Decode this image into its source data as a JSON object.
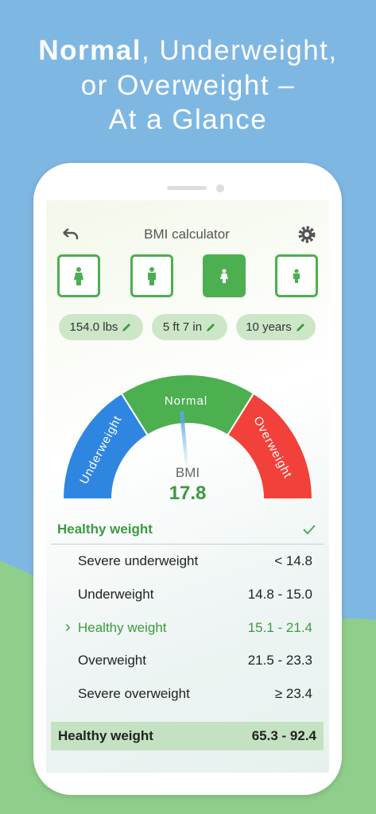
{
  "headline": {
    "bold": "Normal",
    "line1_rest": ", Underweight,",
    "line2": "or Overweight –",
    "line3": "At a Glance"
  },
  "app": {
    "title": "BMI calculator",
    "chips": [
      "154.0 lbs",
      "5 ft 7 in",
      "10 years"
    ],
    "gauge": {
      "segments": [
        "Underweight",
        "Normal",
        "Overweight"
      ],
      "label": "BMI",
      "value": "17.8"
    },
    "status": "Healthy weight",
    "table": {
      "rows": [
        [
          "Severe underweight",
          "< 14.8"
        ],
        [
          "Underweight",
          "14.8 - 15.0"
        ],
        [
          "Healthy weight",
          "15.1 - 21.4"
        ],
        [
          "Overweight",
          "21.5 - 23.3"
        ],
        [
          "Severe overweight",
          "≥ 23.4"
        ]
      ],
      "selected_marker": "›"
    },
    "footer": {
      "label": "Healthy weight",
      "range": "65.3 - 92.4"
    }
  }
}
